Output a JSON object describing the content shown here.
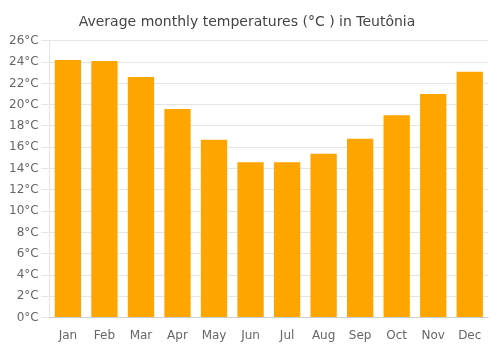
{
  "chart_data": {
    "type": "bar",
    "title": "Average monthly temperatures (°C ) in Teutônia",
    "categories": [
      "Jan",
      "Feb",
      "Mar",
      "Apr",
      "May",
      "Jun",
      "Jul",
      "Aug",
      "Sep",
      "Oct",
      "Nov",
      "Dec"
    ],
    "values": [
      24.2,
      24.1,
      22.6,
      19.6,
      16.7,
      14.6,
      14.6,
      15.4,
      16.8,
      19.0,
      21.0,
      23.1
    ],
    "color": "#FFA500",
    "ylim": [
      0,
      26
    ],
    "yticks": [
      {
        "value": 0,
        "label": "0°C"
      },
      {
        "value": 2,
        "label": "2°C"
      },
      {
        "value": 4,
        "label": "4°C"
      },
      {
        "value": 6,
        "label": "6°C"
      },
      {
        "value": 8,
        "label": "8°C"
      },
      {
        "value": 10,
        "label": "10°C"
      },
      {
        "value": 12,
        "label": "12°C"
      },
      {
        "value": 14,
        "label": "14°C"
      },
      {
        "value": 16,
        "label": "16°C"
      },
      {
        "value": 18,
        "label": "18°C"
      },
      {
        "value": 20,
        "label": "20°C"
      },
      {
        "value": 22,
        "label": "22°C"
      },
      {
        "value": 24,
        "label": "24°C"
      },
      {
        "value": 26,
        "label": "26°C"
      }
    ],
    "grid": true
  }
}
